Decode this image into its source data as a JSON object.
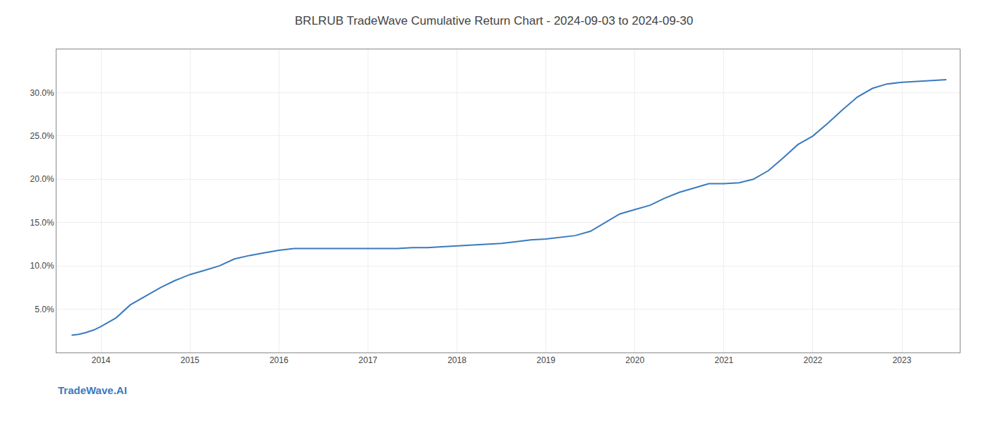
{
  "chart_data": {
    "type": "line",
    "title": "BRLRUB TradeWave Cumulative Return Chart - 2024-09-03 to 2024-09-30",
    "annotations": [
      "TradeWave.AI"
    ],
    "color": "#3a7abf",
    "grid": true,
    "x": [
      2013.67,
      2013.75,
      2013.83,
      2013.92,
      2014.0,
      2014.17,
      2014.33,
      2014.5,
      2014.67,
      2014.83,
      2015.0,
      2015.17,
      2015.33,
      2015.5,
      2015.67,
      2015.83,
      2016.0,
      2016.17,
      2016.33,
      2016.5,
      2016.67,
      2016.83,
      2017.0,
      2017.17,
      2017.33,
      2017.5,
      2017.67,
      2017.83,
      2018.0,
      2018.17,
      2018.33,
      2018.5,
      2018.67,
      2018.83,
      2019.0,
      2019.17,
      2019.33,
      2019.5,
      2019.67,
      2019.83,
      2020.0,
      2020.17,
      2020.33,
      2020.5,
      2020.67,
      2020.83,
      2021.0,
      2021.17,
      2021.33,
      2021.5,
      2021.67,
      2021.83,
      2022.0,
      2022.17,
      2022.33,
      2022.5,
      2022.67,
      2022.83,
      2023.0,
      2023.17,
      2023.33,
      2023.5
    ],
    "values": [
      2.0,
      2.1,
      2.3,
      2.6,
      3.0,
      4.0,
      5.5,
      6.5,
      7.5,
      8.3,
      9.0,
      9.5,
      10.0,
      10.8,
      11.2,
      11.5,
      11.8,
      12.0,
      12.0,
      12.0,
      12.0,
      12.0,
      12.0,
      12.0,
      12.0,
      12.1,
      12.1,
      12.2,
      12.3,
      12.4,
      12.5,
      12.6,
      12.8,
      13.0,
      13.1,
      13.3,
      13.5,
      14.0,
      15.0,
      16.0,
      16.5,
      17.0,
      17.8,
      18.5,
      19.0,
      19.5,
      19.5,
      19.6,
      20.0,
      21.0,
      22.5,
      24.0,
      25.0,
      26.5,
      28.0,
      29.5,
      30.5,
      31.0,
      31.2,
      31.3,
      31.4,
      31.5
    ],
    "xlim": [
      2013.5,
      2023.65
    ],
    "xticks": [
      2014,
      2015,
      2016,
      2017,
      2018,
      2019,
      2020,
      2021,
      2022,
      2023
    ],
    "ylim": [
      0,
      35
    ],
    "yticks": [
      {
        "value": 5.0,
        "label": "5.0%"
      },
      {
        "value": 10.0,
        "label": "10.0%"
      },
      {
        "value": 15.0,
        "label": "15.0%"
      },
      {
        "value": 20.0,
        "label": "20.0%"
      },
      {
        "value": 25.0,
        "label": "25.0%"
      },
      {
        "value": 30.0,
        "label": "30.0%"
      }
    ]
  }
}
